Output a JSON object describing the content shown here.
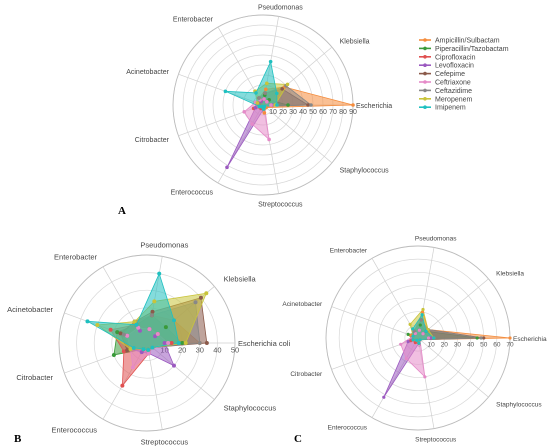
{
  "chart_data": [
    {
      "type": "radar",
      "panel": "A",
      "axes": [
        "Escherichia",
        "Klebsiella",
        "Pseudomonas",
        "Enterobacter",
        "Acinetobacter",
        "Citrobacter",
        "Enterococcus",
        "Streptococcus",
        "Staphylococcus"
      ],
      "ticks": [
        "0",
        "10",
        "20",
        "30",
        "40",
        "50",
        "60",
        "70",
        "80",
        "90"
      ],
      "rmax": 90,
      "series": [
        {
          "name": "Ampicillin/Sulbactam",
          "color": "#f58c3c",
          "values": [
            90,
            28,
            16,
            8,
            4,
            4,
            2,
            8,
            4
          ]
        },
        {
          "name": "Piperacillin/Tazobactam",
          "color": "#3a9a3a",
          "values": [
            25,
            8,
            10,
            6,
            8,
            4,
            2,
            4,
            2
          ]
        },
        {
          "name": "Ciprofloxacin",
          "color": "#e05050",
          "values": [
            8,
            5,
            6,
            4,
            6,
            10,
            4,
            4,
            2
          ]
        },
        {
          "name": "Levofloxacin",
          "color": "#9b59c0",
          "values": [
            10,
            5,
            6,
            4,
            6,
            8,
            72,
            4,
            2
          ]
        },
        {
          "name": "Cefepime",
          "color": "#8b5a4a",
          "values": [
            45,
            25,
            12,
            8,
            4,
            4,
            2,
            4,
            2
          ]
        },
        {
          "name": "Ceftriaxone",
          "color": "#e58ac8",
          "values": [
            8,
            5,
            6,
            6,
            8,
            20,
            22,
            35,
            2
          ]
        },
        {
          "name": "Ceftazidime",
          "color": "#888888",
          "values": [
            48,
            30,
            12,
            8,
            4,
            4,
            2,
            4,
            2
          ]
        },
        {
          "name": "Meropenem",
          "color": "#c9c43a",
          "values": [
            12,
            32,
            22,
            16,
            6,
            4,
            2,
            4,
            2
          ]
        },
        {
          "name": "Imipenem",
          "color": "#1fc0c0",
          "values": [
            14,
            18,
            44,
            14,
            40,
            4,
            2,
            4,
            2
          ]
        }
      ]
    },
    {
      "type": "radar",
      "panel": "B",
      "axes": [
        "Escherichia coli",
        "Klebsiella",
        "Pseudomonas",
        "Enterobacter",
        "Acinetobacter",
        "Citrobacter",
        "Enterococcus",
        "Streptococcus",
        "Staphylococcus"
      ],
      "ticks": [
        "0",
        "10",
        "20",
        "30",
        "40",
        "50"
      ],
      "rmax": 50,
      "series": [
        {
          "name": "Ampicillin/Sulbactam",
          "color": "#f58c3c",
          "values": [
            30,
            20,
            16,
            14,
            12,
            8,
            4,
            4,
            4
          ]
        },
        {
          "name": "Piperacillin/Tazobactam",
          "color": "#3a9a3a",
          "values": [
            20,
            14,
            16,
            12,
            18,
            20,
            4,
            4,
            4
          ]
        },
        {
          "name": "Ciprofloxacin",
          "color": "#e05050",
          "values": [
            14,
            8,
            8,
            12,
            22,
            14,
            28,
            6,
            4
          ]
        },
        {
          "name": "Levofloxacin",
          "color": "#9b59c0",
          "values": [
            10,
            6,
            8,
            8,
            12,
            10,
            6,
            6,
            20
          ]
        },
        {
          "name": "Cefepime",
          "color": "#8b5a4a",
          "values": [
            34,
            40,
            18,
            14,
            16,
            12,
            4,
            4,
            4
          ]
        },
        {
          "name": "Ceftriaxone",
          "color": "#e58ac8",
          "values": [
            12,
            8,
            8,
            10,
            12,
            10,
            16,
            6,
            4
          ]
        },
        {
          "name": "Ceftazidime",
          "color": "#888888",
          "values": [
            30,
            36,
            16,
            14,
            14,
            10,
            4,
            4,
            4
          ]
        },
        {
          "name": "Meropenem",
          "color": "#c9c43a",
          "values": [
            22,
            44,
            24,
            14,
            30,
            10,
            4,
            4,
            4
          ]
        },
        {
          "name": "Imipenem",
          "color": "#1fc0c0",
          "values": [
            18,
            20,
            40,
            12,
            36,
            8,
            4,
            4,
            4
          ]
        }
      ]
    },
    {
      "type": "radar",
      "panel": "C",
      "axes": [
        "Escherichia",
        "Klebsiella",
        "Pseudomonas",
        "Enterobacter",
        "Acinetobacter",
        "Citrobacter",
        "Enterococcus",
        "Streptococcus",
        "Staphylococcus"
      ],
      "ticks": [
        "0",
        "10",
        "20",
        "30",
        "40",
        "50",
        "60",
        "70"
      ],
      "rmax": 70,
      "series": [
        {
          "name": "Ampicillin/Sulbactam",
          "color": "#f58c3c",
          "values": [
            70,
            10,
            20,
            6,
            6,
            4,
            4,
            4,
            2
          ]
        },
        {
          "name": "Piperacillin/Tazobactam",
          "color": "#3a9a3a",
          "values": [
            45,
            8,
            10,
            4,
            8,
            4,
            2,
            4,
            2
          ]
        },
        {
          "name": "Ciprofloxacin",
          "color": "#e05050",
          "values": [
            10,
            5,
            6,
            4,
            4,
            6,
            4,
            4,
            2
          ]
        },
        {
          "name": "Levofloxacin",
          "color": "#9b59c0",
          "values": [
            10,
            5,
            6,
            4,
            4,
            8,
            52,
            4,
            2
          ]
        },
        {
          "name": "Cefepime",
          "color": "#8b5a4a",
          "values": [
            50,
            10,
            14,
            6,
            4,
            4,
            2,
            4,
            2
          ]
        },
        {
          "name": "Ceftriaxone",
          "color": "#e58ac8",
          "values": [
            8,
            5,
            6,
            4,
            4,
            14,
            18,
            30,
            2
          ]
        },
        {
          "name": "Ceftazidime",
          "color": "#888888",
          "values": [
            48,
            10,
            14,
            6,
            4,
            4,
            2,
            4,
            2
          ]
        },
        {
          "name": "Meropenem",
          "color": "#c9c43a",
          "values": [
            12,
            10,
            22,
            12,
            4,
            4,
            2,
            4,
            2
          ]
        },
        {
          "name": "Imipenem",
          "color": "#1fc0c0",
          "values": [
            12,
            8,
            18,
            8,
            4,
            4,
            2,
            4,
            2
          ]
        }
      ]
    }
  ],
  "legend_items": [
    "Ampicillin/Sulbactam",
    "Piperacillin/Tazobactam",
    "Ciprofloxacin",
    "Levofloxacin",
    "Cefepime",
    "Ceftriaxone",
    "Ceftazidime",
    "Meropenem",
    "Imipenem"
  ]
}
